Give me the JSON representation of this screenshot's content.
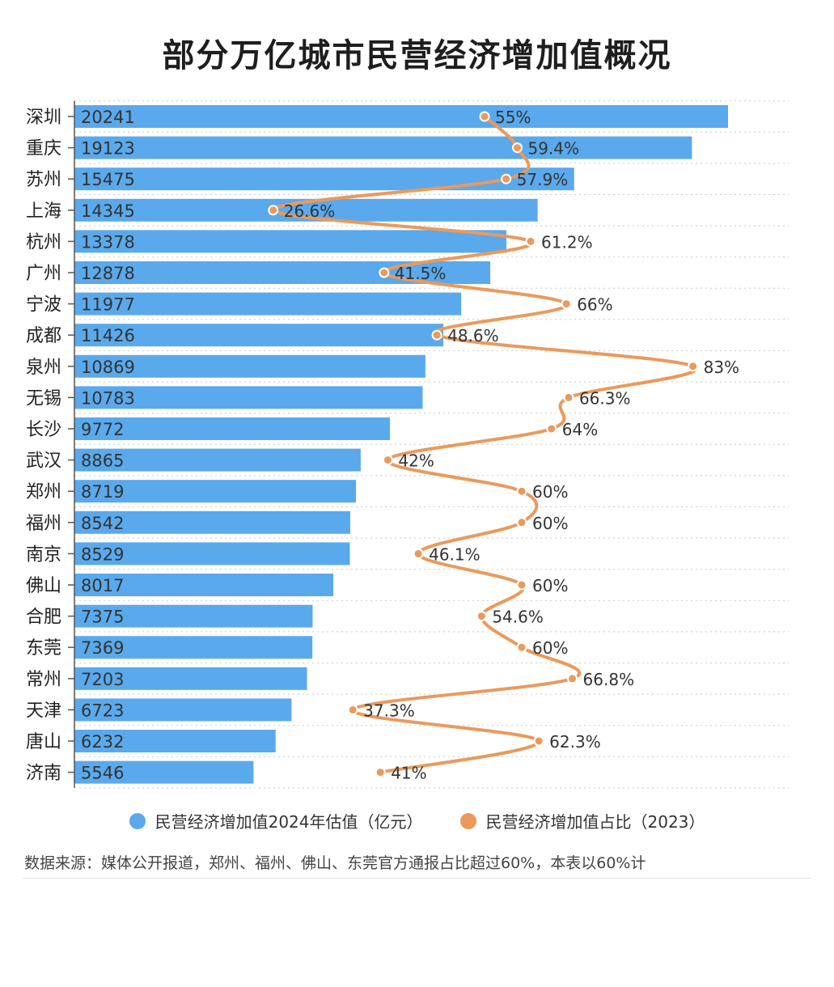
{
  "title": "部分万亿城市民营经济增加值概况",
  "colors": {
    "bar": "#5aa9ec",
    "line": "#ea9a5c",
    "grid": "#cccccc",
    "axis": "#555555"
  },
  "legend": {
    "bar_label": "民营经济增加值2024年估值（亿元）",
    "line_label": "民营经济增加值占比（2023）"
  },
  "source": "数据来源：媒体公开报道，郑州、福州、佛山、东莞官方通报占比超过60%，本表以60%计",
  "chart_data": {
    "type": "bar",
    "orientation": "horizontal",
    "categories": [
      "深圳",
      "重庆",
      "苏州",
      "上海",
      "杭州",
      "广州",
      "宁波",
      "成都",
      "泉州",
      "无锡",
      "长沙",
      "武汉",
      "郑州",
      "福州",
      "南京",
      "佛山",
      "合肥",
      "东莞",
      "常州",
      "天津",
      "唐山",
      "济南"
    ],
    "series": [
      {
        "name": "民营经济增加值2024年估值（亿元）",
        "type": "bar",
        "values": [
          20241,
          19123,
          15475,
          14345,
          13378,
          12878,
          11977,
          11426,
          10869,
          10783,
          9772,
          8865,
          8719,
          8542,
          8529,
          8017,
          7375,
          7369,
          7203,
          6723,
          6232,
          5546
        ],
        "labels": [
          "20241",
          "19123",
          "15475",
          "14345",
          "13378",
          "12878",
          "11977",
          "11426",
          "10869",
          "10783",
          "9772",
          "8865",
          "8719",
          "8542",
          "8529",
          "8017",
          "7375",
          "7369",
          "7203",
          "6723",
          "6232",
          "5546"
        ]
      },
      {
        "name": "民营经济增加值占比（2023）",
        "type": "line",
        "values": [
          55,
          59.4,
          57.9,
          26.6,
          61.2,
          41.5,
          66,
          48.6,
          83,
          66.3,
          64,
          42,
          60,
          60,
          46.1,
          60,
          54.6,
          60,
          66.8,
          37.3,
          62.3,
          41
        ],
        "labels": [
          "55%",
          "59.4%",
          "57.9%",
          "26.6%",
          "61.2%",
          "41.5%",
          "66%",
          "48.6%",
          "83%",
          "66.3%",
          "64%",
          "42%",
          "60%",
          "60%",
          "46.1%",
          "60%",
          "54.6%",
          "60%",
          "66.8%",
          "37.3%",
          "62.3%",
          "41%"
        ]
      }
    ],
    "legend_position": "bottom",
    "grid": "vertical-dotted"
  }
}
